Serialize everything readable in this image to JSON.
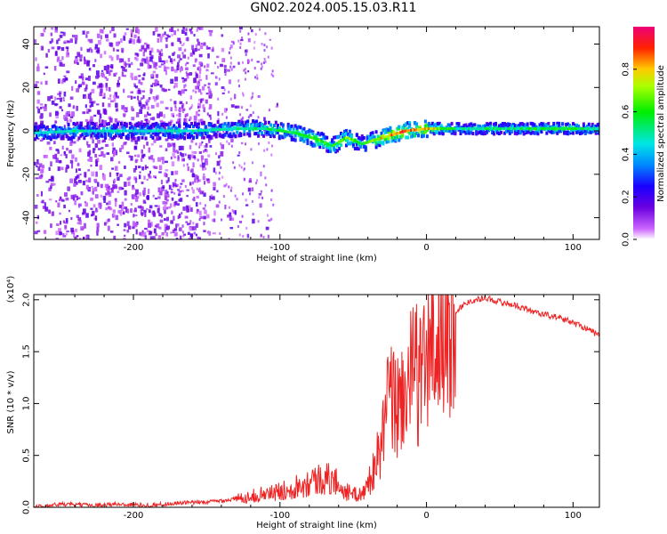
{
  "title": "GN02.2024.005.15.03.R11",
  "colors": {
    "line": "#ee2222",
    "background": "#ffffff"
  },
  "chart_data": [
    {
      "type": "heatmap",
      "xlabel": "Height of straight line (km)",
      "ylabel": "Frequency (Hz)",
      "xlim": [
        -268,
        118
      ],
      "ylim": [
        -50,
        48
      ],
      "x_ticks": [
        -200,
        -100,
        0,
        100
      ],
      "x_tick_labels": [
        "-200",
        "-100",
        "0",
        "100"
      ],
      "y_ticks": [
        -40,
        -20,
        0,
        20,
        40
      ],
      "y_tick_labels": [
        "-40",
        "-20",
        "0",
        "20",
        "40"
      ],
      "colorbar": {
        "label": "Normalized spectral amplitude",
        "range": [
          0,
          1
        ],
        "ticks": [
          0.0,
          0.2,
          0.4,
          0.6,
          0.8
        ],
        "tick_labels": [
          "0.0",
          "0.2",
          "0.4",
          "0.6",
          "0.8"
        ],
        "colormap": "rainbow (white-purple-blue-cyan-green-yellow-red-magenta)"
      },
      "ridge": {
        "description": "main spectral ridge (frequency vs height)",
        "x": [
          -268,
          -240,
          -200,
          -160,
          -130,
          -110,
          -90,
          -75,
          -65,
          -55,
          -45,
          -35,
          -25,
          -15,
          0,
          20,
          60,
          100,
          118
        ],
        "y": [
          -1,
          0,
          0,
          0,
          1,
          1,
          -1,
          -4,
          -7,
          -3,
          -6,
          -4,
          -2,
          0,
          1,
          1,
          1,
          1,
          1
        ],
        "amplitude": [
          0.45,
          0.5,
          0.45,
          0.5,
          0.5,
          0.55,
          0.6,
          0.65,
          0.6,
          0.7,
          0.55,
          0.75,
          0.85,
          0.9,
          0.85,
          0.5,
          0.55,
          0.6,
          0.5
        ]
      },
      "grid": false
    },
    {
      "type": "line",
      "xlabel": "Height of straight line (km)",
      "ylabel": "SNR (10 * v/v)",
      "y_multiplier": "(x10⁴)",
      "xlim": [
        -268,
        118
      ],
      "ylim": [
        0.0,
        2.05
      ],
      "x_ticks": [
        -200,
        -100,
        0,
        100
      ],
      "x_tick_labels": [
        "-200",
        "-100",
        "0",
        "100"
      ],
      "y_ticks": [
        0.0,
        0.5,
        1.0,
        1.5,
        2.0
      ],
      "y_tick_labels": [
        "0.0",
        "0.5",
        "1.0",
        "1.5",
        "2.0"
      ],
      "series": [
        {
          "x": [
            -268,
            -250,
            -230,
            -210,
            -190,
            -170,
            -150,
            -130,
            -115,
            -100,
            -90,
            -80,
            -70,
            -62,
            -55,
            -48,
            -42,
            -38,
            -34,
            -30,
            -27,
            -24,
            -20,
            -15,
            -10,
            -5,
            0,
            5,
            10,
            15,
            20,
            25,
            30,
            40,
            50,
            60,
            70,
            80,
            90,
            100,
            110,
            118
          ],
          "values": [
            0.0,
            0.03,
            0.02,
            0.03,
            0.02,
            0.04,
            0.05,
            0.08,
            0.12,
            0.15,
            0.2,
            0.25,
            0.28,
            0.25,
            0.15,
            0.12,
            0.15,
            0.3,
            0.45,
            0.65,
            0.95,
            1.05,
            0.95,
            1.15,
            1.25,
            1.3,
            1.4,
            1.55,
            1.62,
            1.8,
            1.88,
            1.95,
            1.99,
            2.02,
            1.98,
            1.95,
            1.9,
            1.86,
            1.83,
            1.78,
            1.72,
            1.65
          ]
        }
      ],
      "grid": false
    }
  ]
}
